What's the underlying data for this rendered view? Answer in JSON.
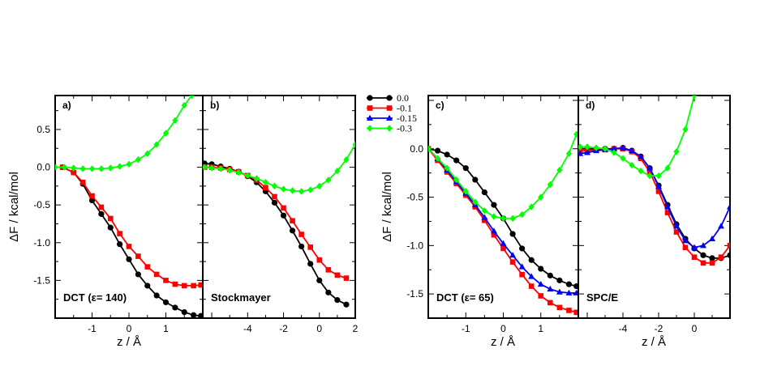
{
  "series_styles": [
    {
      "name": "0.0",
      "color": "#000000",
      "marker": "circle"
    },
    {
      "name": "-0.1",
      "color": "#ff0000",
      "marker": "square"
    },
    {
      "name": "-0.15",
      "color": "#0000ff",
      "marker": "triangle"
    },
    {
      "name": "-0.3",
      "color": "#00ff00",
      "marker": "diamond"
    }
  ],
  "chart_data": [
    {
      "type": "line",
      "panel": "a)",
      "label": "DCT (ε= 140)",
      "ylabel": "ΔF / kcal/mol",
      "xlabel": "z / Å",
      "xlim": [
        -2,
        2
      ],
      "ylim": [
        -2.0,
        0.95
      ],
      "xticks": [
        -1,
        0,
        1
      ],
      "yticks": [
        0.5,
        0.0,
        -0.5,
        -1.0,
        -1.5
      ],
      "ytick_labels": [
        "0.5",
        "0.0",
        "-0.5",
        "-1.0",
        "-1.5"
      ],
      "series": [
        {
          "name": "0.0",
          "x": [
            -1.8,
            -1.5,
            -1.25,
            -1.0,
            -0.75,
            -0.5,
            -0.25,
            0.0,
            0.25,
            0.5,
            0.75,
            1.0,
            1.25,
            1.5,
            1.75,
            1.95
          ],
          "y": [
            0.0,
            -0.07,
            -0.22,
            -0.44,
            -0.62,
            -0.8,
            -1.02,
            -1.22,
            -1.42,
            -1.57,
            -1.7,
            -1.79,
            -1.86,
            -1.92,
            -1.96,
            -1.97
          ]
        },
        {
          "name": "-0.1",
          "x": [
            -1.8,
            -1.5,
            -1.25,
            -1.0,
            -0.75,
            -0.5,
            -0.25,
            0.0,
            0.25,
            0.5,
            0.75,
            1.0,
            1.25,
            1.5,
            1.75,
            1.95
          ],
          "y": [
            0.0,
            -0.07,
            -0.2,
            -0.38,
            -0.53,
            -0.68,
            -0.88,
            -1.05,
            -1.18,
            -1.32,
            -1.42,
            -1.5,
            -1.55,
            -1.57,
            -1.57,
            -1.56
          ]
        },
        {
          "name": "-0.3",
          "x": [
            -2.0,
            -1.75,
            -1.5,
            -1.25,
            -1.0,
            -0.75,
            -0.5,
            -0.25,
            0.0,
            0.25,
            0.5,
            0.75,
            1.0,
            1.25,
            1.5,
            1.7
          ],
          "y": [
            0.0,
            0.0,
            -0.01,
            -0.02,
            -0.02,
            -0.02,
            -0.01,
            0.01,
            0.04,
            0.1,
            0.18,
            0.3,
            0.45,
            0.62,
            0.82,
            0.95
          ]
        }
      ]
    },
    {
      "type": "line",
      "panel": "b)",
      "label": "Stockmayer",
      "xlabel": "",
      "xlim": [
        -6.5,
        2
      ],
      "ylim": [
        -2.0,
        0.95
      ],
      "xticks": [
        -4,
        -2,
        0,
        2
      ],
      "series": [
        {
          "name": "0.0",
          "x": [
            -6.4,
            -6.0,
            -5.5,
            -5.0,
            -4.5,
            -4.0,
            -3.5,
            -3.0,
            -2.5,
            -2.0,
            -1.5,
            -1.0,
            -0.5,
            0.0,
            0.5,
            1.0,
            1.5
          ],
          "y": [
            0.05,
            0.04,
            0.01,
            -0.02,
            -0.06,
            -0.12,
            -0.2,
            -0.32,
            -0.47,
            -0.64,
            -0.84,
            -1.05,
            -1.28,
            -1.5,
            -1.66,
            -1.76,
            -1.82
          ]
        },
        {
          "name": "-0.1",
          "x": [
            -6.4,
            -6.0,
            -5.5,
            -5.0,
            -4.5,
            -4.0,
            -3.5,
            -3.0,
            -2.5,
            -2.0,
            -1.5,
            -1.0,
            -0.5,
            0.0,
            0.5,
            1.0,
            1.5
          ],
          "y": [
            0.0,
            0.0,
            -0.01,
            -0.03,
            -0.06,
            -0.11,
            -0.17,
            -0.27,
            -0.39,
            -0.54,
            -0.71,
            -0.89,
            -1.06,
            -1.23,
            -1.36,
            -1.43,
            -1.47
          ]
        },
        {
          "name": "-0.3",
          "x": [
            -6.4,
            -6.0,
            -5.5,
            -5.0,
            -4.5,
            -4.0,
            -3.5,
            -3.0,
            -2.5,
            -2.0,
            -1.5,
            -1.0,
            -0.5,
            0.0,
            0.5,
            1.0,
            1.5,
            2.0
          ],
          "y": [
            0.0,
            -0.01,
            -0.02,
            -0.04,
            -0.07,
            -0.11,
            -0.15,
            -0.2,
            -0.25,
            -0.29,
            -0.31,
            -0.32,
            -0.3,
            -0.25,
            -0.17,
            -0.05,
            0.1,
            0.3
          ]
        }
      ]
    },
    {
      "type": "line",
      "panel": "c)",
      "label": "DCT (ε= 65)",
      "ylabel": "ΔF / kcal/mol",
      "xlabel": "z / Å",
      "xlim": [
        -2,
        2
      ],
      "ylim": [
        -1.75,
        0.55
      ],
      "xticks": [
        -1,
        0,
        1
      ],
      "yticks": [
        0.0,
        -0.5,
        -1.0,
        -1.5
      ],
      "ytick_labels": [
        "0.0",
        "-0.5",
        "-1.0",
        "-1.5"
      ],
      "series": [
        {
          "name": "0.0",
          "x": [
            -2.0,
            -1.75,
            -1.5,
            -1.25,
            -1.0,
            -0.75,
            -0.5,
            -0.25,
            0.0,
            0.25,
            0.5,
            0.75,
            1.0,
            1.25,
            1.5,
            1.75,
            1.95
          ],
          "y": [
            0.0,
            -0.02,
            -0.06,
            -0.12,
            -0.2,
            -0.32,
            -0.45,
            -0.58,
            -0.72,
            -0.88,
            -1.03,
            -1.15,
            -1.24,
            -1.31,
            -1.36,
            -1.4,
            -1.42
          ]
        },
        {
          "name": "-0.1",
          "x": [
            -2.0,
            -1.75,
            -1.5,
            -1.25,
            -1.0,
            -0.75,
            -0.5,
            -0.25,
            0.0,
            0.25,
            0.5,
            0.75,
            1.0,
            1.25,
            1.5,
            1.75,
            1.95
          ],
          "y": [
            0.0,
            -0.12,
            -0.24,
            -0.36,
            -0.48,
            -0.6,
            -0.74,
            -0.89,
            -1.03,
            -1.17,
            -1.3,
            -1.42,
            -1.52,
            -1.59,
            -1.64,
            -1.67,
            -1.69
          ]
        },
        {
          "name": "-0.15",
          "x": [
            -2.0,
            -1.75,
            -1.5,
            -1.25,
            -1.0,
            -0.75,
            -0.5,
            -0.25,
            0.0,
            0.25,
            0.5,
            0.75,
            1.0,
            1.25,
            1.5,
            1.75,
            1.95
          ],
          "y": [
            0.0,
            -0.1,
            -0.22,
            -0.34,
            -0.46,
            -0.58,
            -0.71,
            -0.85,
            -0.98,
            -1.1,
            -1.22,
            -1.32,
            -1.4,
            -1.45,
            -1.48,
            -1.49,
            -1.49
          ]
        },
        {
          "name": "-0.3",
          "x": [
            -2.0,
            -1.75,
            -1.5,
            -1.25,
            -1.0,
            -0.75,
            -0.5,
            -0.25,
            0.0,
            0.25,
            0.5,
            0.75,
            1.0,
            1.25,
            1.5,
            1.75,
            1.95
          ],
          "y": [
            0.0,
            -0.1,
            -0.2,
            -0.32,
            -0.44,
            -0.55,
            -0.64,
            -0.7,
            -0.72,
            -0.72,
            -0.68,
            -0.6,
            -0.5,
            -0.37,
            -0.22,
            -0.05,
            0.15
          ]
        }
      ]
    },
    {
      "type": "line",
      "panel": "d)",
      "label": "SPC/E",
      "xlabel": "z / Å",
      "xlim": [
        -6.5,
        2
      ],
      "ylim": [
        -1.75,
        0.55
      ],
      "xticks": [
        -4,
        -2,
        0
      ],
      "series": [
        {
          "name": "0.0",
          "x": [
            -6.4,
            -6.0,
            -5.5,
            -5.0,
            -4.5,
            -4.0,
            -3.5,
            -3.0,
            -2.5,
            -2.0,
            -1.5,
            -1.0,
            -0.5,
            0.0,
            0.5,
            1.0,
            1.5,
            2.0
          ],
          "y": [
            0.0,
            0.0,
            0.0,
            0.0,
            0.0,
            0.01,
            -0.02,
            -0.08,
            -0.2,
            -0.38,
            -0.58,
            -0.78,
            -0.93,
            -1.03,
            -1.1,
            -1.13,
            -1.13,
            -1.1
          ]
        },
        {
          "name": "-0.1",
          "x": [
            -6.4,
            -6.0,
            -5.5,
            -5.0,
            -4.5,
            -4.0,
            -3.5,
            -3.0,
            -2.5,
            -2.0,
            -1.5,
            -1.0,
            -0.5,
            0.0,
            0.5,
            1.0,
            1.5,
            2.0
          ],
          "y": [
            -0.02,
            -0.02,
            -0.01,
            -0.01,
            0.0,
            0.0,
            -0.03,
            -0.1,
            -0.24,
            -0.44,
            -0.66,
            -0.86,
            -1.02,
            -1.12,
            -1.18,
            -1.18,
            -1.12,
            -1.0
          ]
        },
        {
          "name": "-0.15",
          "x": [
            -6.4,
            -6.0,
            -5.5,
            -5.0,
            -4.5,
            -4.0,
            -3.5,
            -3.0,
            -2.5,
            -2.0,
            -1.5,
            -1.0,
            -0.5,
            0.0,
            0.5,
            1.0,
            1.5,
            2.0
          ],
          "y": [
            -0.05,
            -0.04,
            -0.02,
            -0.01,
            0.0,
            0.01,
            -0.02,
            -0.08,
            -0.2,
            -0.39,
            -0.6,
            -0.8,
            -0.95,
            -1.02,
            -1.0,
            -0.93,
            -0.8,
            -0.6
          ]
        },
        {
          "name": "-0.3",
          "x": [
            -6.4,
            -6.0,
            -5.5,
            -5.0,
            -4.5,
            -4.0,
            -3.5,
            -3.0,
            -2.5,
            -2.0,
            -1.5,
            -1.0,
            -0.5,
            0.0
          ],
          "y": [
            0.02,
            0.02,
            0.01,
            0.0,
            -0.04,
            -0.1,
            -0.17,
            -0.23,
            -0.28,
            -0.28,
            -0.2,
            -0.03,
            0.2,
            0.55
          ]
        }
      ]
    }
  ]
}
